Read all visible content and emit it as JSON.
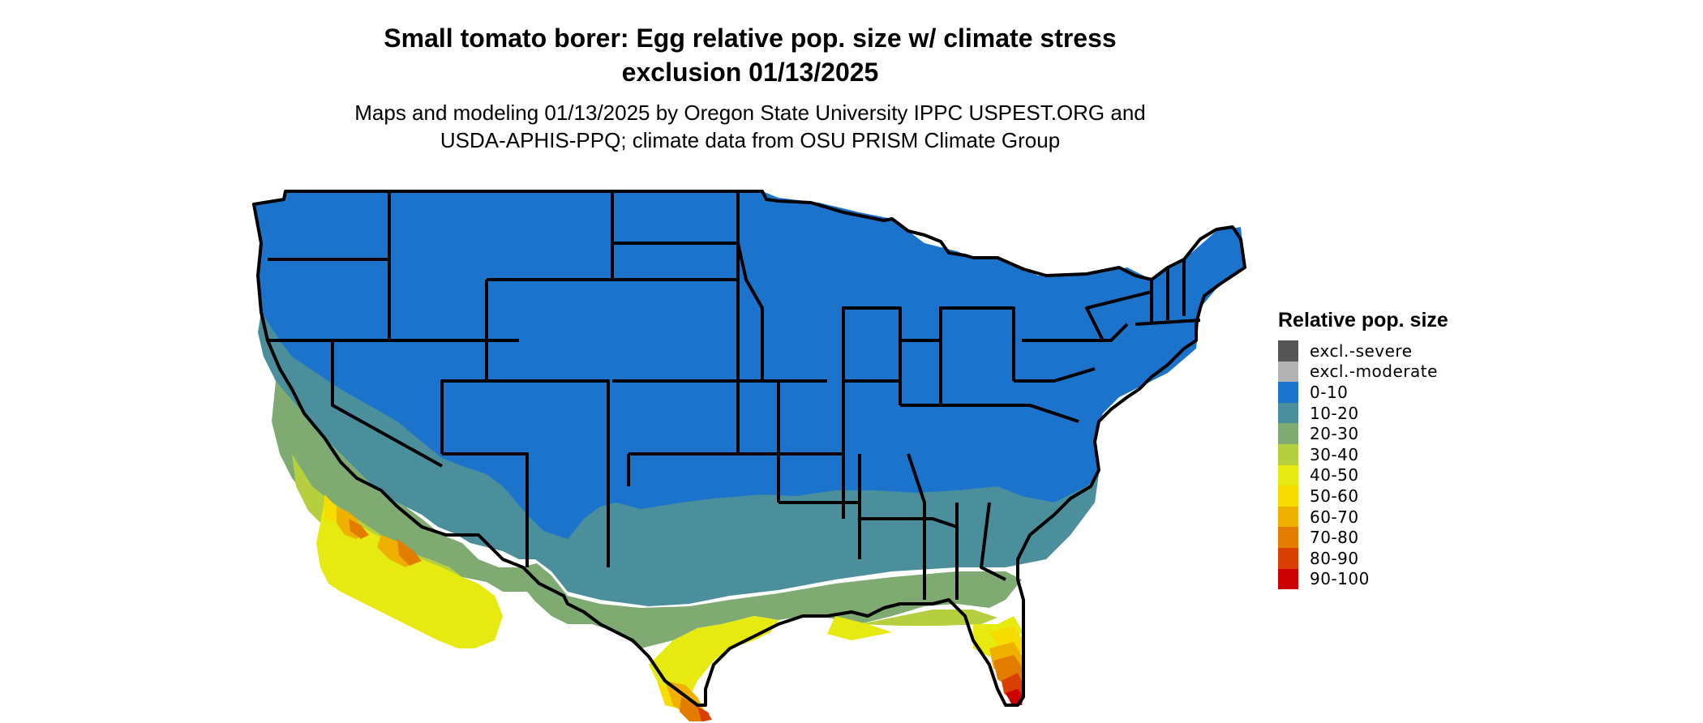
{
  "title_line1": "Small tomato borer: Egg relative pop. size w/ climate stress",
  "title_line2": "exclusion 01/13/2025",
  "subtitle_line1": "Maps and modeling 01/13/2025 by Oregon State University IPPC USPEST.ORG and",
  "subtitle_line2": "USDA-APHIS-PPQ; climate data from OSU PRISM Climate Group",
  "legend": {
    "title": "Relative pop. size",
    "items": [
      {
        "label": "excl.-severe",
        "color": "#555555"
      },
      {
        "label": "excl.-moderate",
        "color": "#b3b3b3"
      },
      {
        "label": "0-10",
        "color": "#1c73cc"
      },
      {
        "label": "10-20",
        "color": "#4b8f9d"
      },
      {
        "label": "20-30",
        "color": "#7fab72"
      },
      {
        "label": "30-40",
        "color": "#b5cf3f"
      },
      {
        "label": "40-50",
        "color": "#e7ea10"
      },
      {
        "label": "50-60",
        "color": "#f7dc00"
      },
      {
        "label": "60-70",
        "color": "#f0b000"
      },
      {
        "label": "70-80",
        "color": "#e37d00"
      },
      {
        "label": "80-90",
        "color": "#d83f00"
      },
      {
        "label": "90-100",
        "color": "#cc0000"
      }
    ]
  }
}
